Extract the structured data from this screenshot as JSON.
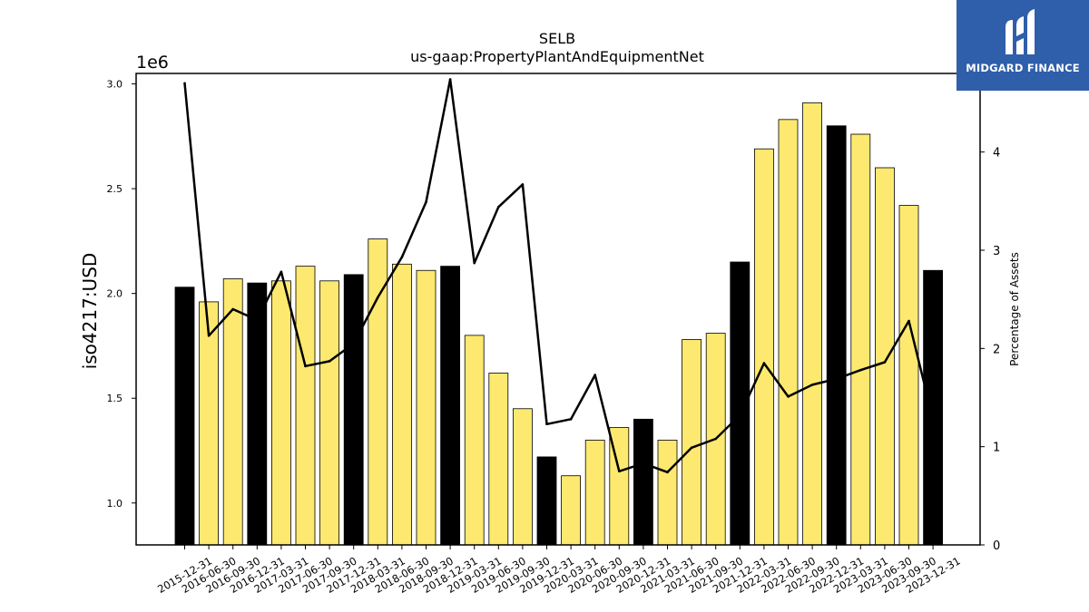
{
  "chart_data": {
    "type": "bar",
    "title": "SELB",
    "subtitle": "us-gaap:PropertyPlantAndEquipmentNet",
    "ylabel": "iso4217:USD",
    "y_offset_label": "1e6",
    "y2label": "Percentage of Assets",
    "ylim": [
      0.8,
      3.05
    ],
    "y2lim": [
      0,
      4.8
    ],
    "yticks": [
      "1.0",
      "1.5",
      "2.0",
      "2.5",
      "3.0"
    ],
    "y2ticks": [
      "0",
      "1",
      "2",
      "3",
      "4"
    ],
    "categories": [
      "2015-12-31",
      "2016-06-30",
      "2016-09-30",
      "2016-12-31",
      "2017-03-31",
      "2017-06-30",
      "2017-09-30",
      "2017-12-31",
      "2018-03-31",
      "2018-06-30",
      "2018-09-30",
      "2018-12-31",
      "2019-03-31",
      "2019-06-30",
      "2019-09-30",
      "2019-12-31",
      "2020-03-31",
      "2020-06-30",
      "2020-09-30",
      "2020-12-31",
      "2021-03-31",
      "2021-06-30",
      "2021-09-30",
      "2021-12-31",
      "2022-03-31",
      "2022-06-30",
      "2022-09-30",
      "2022-12-31",
      "2023-03-31",
      "2023-06-30",
      "2023-09-30",
      "2023-12-31"
    ],
    "bar_values_millions": [
      2.03,
      1.96,
      2.07,
      2.05,
      2.06,
      2.13,
      2.06,
      2.09,
      2.26,
      2.14,
      2.11,
      2.13,
      1.8,
      1.62,
      1.45,
      1.22,
      1.13,
      1.3,
      1.36,
      1.4,
      1.3,
      1.78,
      1.81,
      2.15,
      2.69,
      2.83,
      2.91,
      2.8,
      2.76,
      2.6,
      2.42,
      2.11
    ],
    "year_end_flags": [
      true,
      false,
      false,
      true,
      false,
      false,
      false,
      true,
      false,
      false,
      false,
      true,
      false,
      false,
      false,
      true,
      false,
      false,
      false,
      true,
      false,
      false,
      false,
      true,
      false,
      false,
      false,
      true,
      false,
      false,
      false,
      true
    ],
    "line_values_percent": [
      4.7,
      2.13,
      2.4,
      2.29,
      2.78,
      1.82,
      1.87,
      2.05,
      2.52,
      2.93,
      3.49,
      4.74,
      2.87,
      3.44,
      3.67,
      1.23,
      1.28,
      1.73,
      0.75,
      0.83,
      0.74,
      0.99,
      1.08,
      1.32,
      1.85,
      1.51,
      1.63,
      1.69,
      1.78,
      1.86,
      2.28,
      1.28
    ],
    "colors": {
      "year_end_bar": "#000000",
      "quarter_bar": "#fde96f",
      "line": "#000000"
    }
  },
  "brand": {
    "name": "MIDGARD FINANCE",
    "background": "#2f5eaa"
  }
}
